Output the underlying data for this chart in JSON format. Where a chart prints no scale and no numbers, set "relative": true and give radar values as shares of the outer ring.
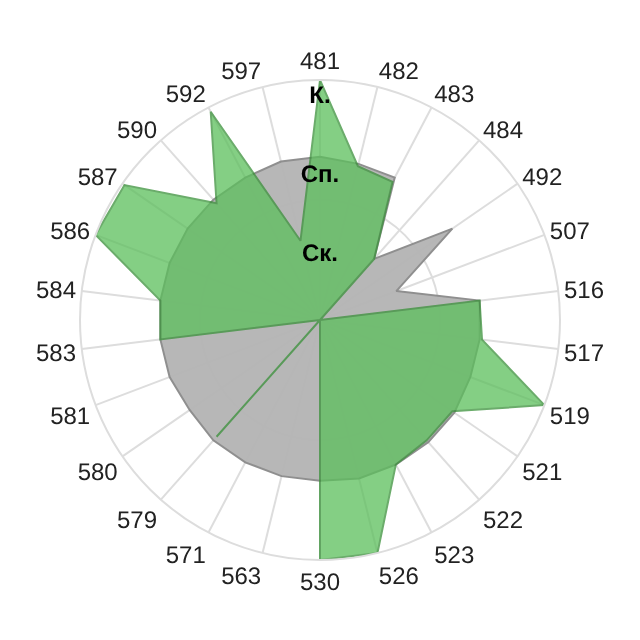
{
  "chart_data": {
    "type": "radar",
    "relative": true,
    "grid": true,
    "marker": "none",
    "categories": [
      "481",
      "482",
      "483",
      "484",
      "492",
      "507",
      "516",
      "517",
      "519",
      "521",
      "522",
      "523",
      "526",
      "530",
      "563",
      "571",
      "579",
      "580",
      "581",
      "583",
      "584",
      "586",
      "587",
      "590",
      "592",
      "597"
    ],
    "series": [
      {
        "color": "#b4b4b4",
        "values": [
          0.68,
          0.67,
          0.67,
          0.34,
          0.67,
          0.34,
          0.67,
          0.67,
          0.67,
          0.68,
          0.68,
          0.68,
          0.68,
          0.67,
          0.67,
          0.67,
          0.67,
          0.66,
          0.67,
          0.67,
          0.67,
          0.67,
          0.67,
          0.67,
          0.67,
          0.68
        ]
      },
      {
        "color": "#5cbf5c",
        "values": [
          1.0,
          0.66,
          0.65,
          0.34,
          0,
          0,
          0.67,
          0.68,
          1.0,
          0.67,
          0.67,
          0.68,
          1.0,
          1.0,
          0,
          0,
          0.65,
          0,
          0,
          0.67,
          0.67,
          1.0,
          0.99,
          0.65,
          0.98,
          0.34
        ]
      }
    ],
    "annotations": [
      "К.",
      "Сп.",
      "Ск."
    ]
  }
}
